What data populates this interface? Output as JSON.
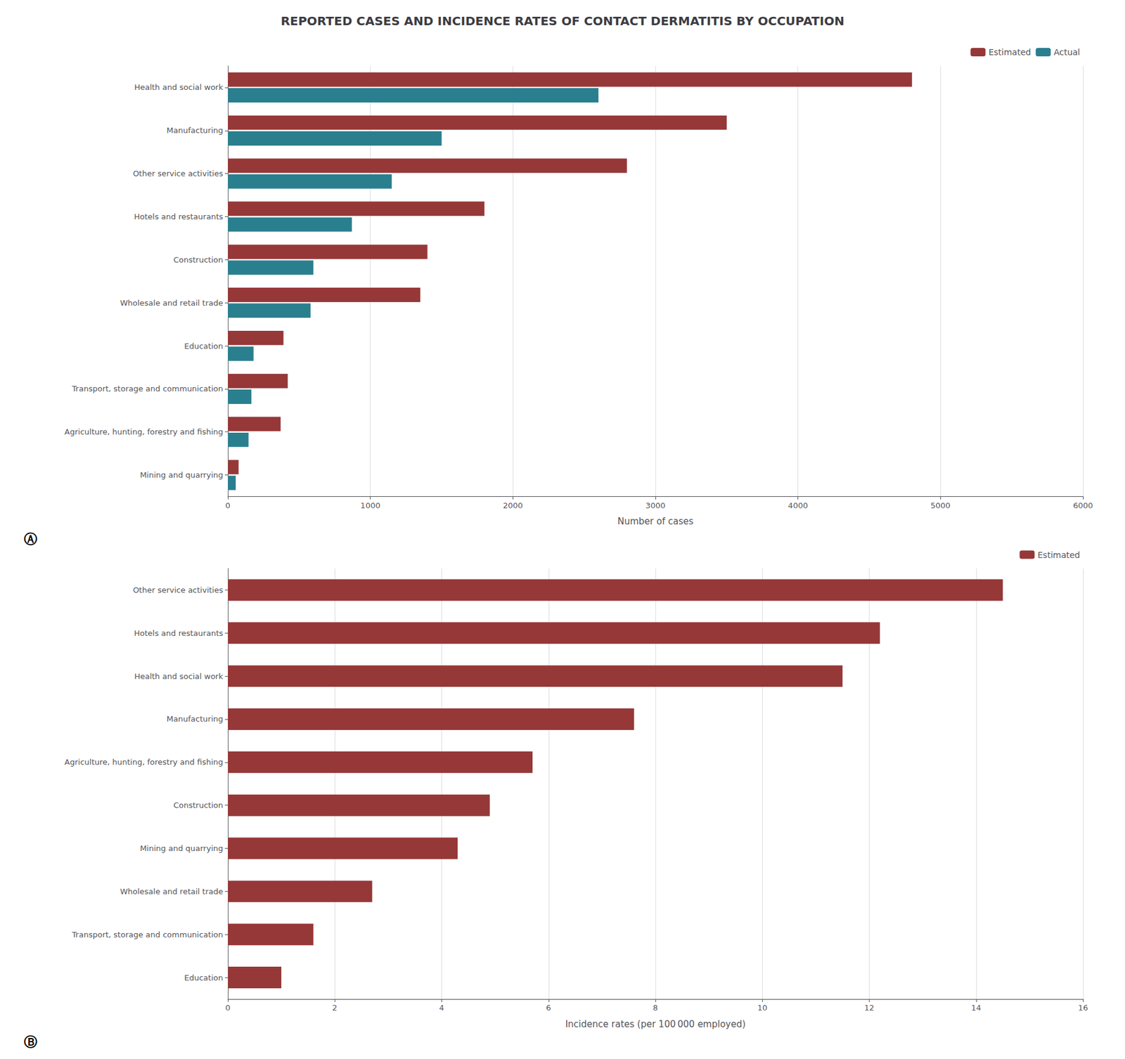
{
  "chart_data": [
    {
      "type": "bar",
      "orientation": "horizontal",
      "title": "REPORTED CASES AND INCIDENCE RATES OF CONTACT DERMATITIS BY OCCUPATION",
      "annotations": [
        "Ⓐ"
      ],
      "categories": [
        "Health and social work",
        "Manufacturing",
        "Other service activities",
        "Hotels and restaurants",
        "Construction",
        "Wholesale and retail trade",
        "Education",
        "Transport, storage and communication",
        "Agriculture, hunting, forestry and fishing",
        "Mining and quarrying"
      ],
      "series": [
        {
          "name": "Estimated",
          "color": "#963838",
          "values": [
            4800,
            3500,
            2800,
            1800,
            1400,
            1350,
            390,
            420,
            370,
            75
          ]
        },
        {
          "name": "Actual",
          "color": "#2A7F8F",
          "values": [
            2600,
            1500,
            1150,
            870,
            600,
            580,
            180,
            165,
            145,
            55
          ]
        }
      ],
      "xlabel": "Number of cases",
      "xlim": [
        0,
        6000
      ],
      "xticks": [
        0,
        1000,
        2000,
        3000,
        4000,
        5000,
        6000
      ],
      "grid": true,
      "legend": "upper right"
    },
    {
      "type": "bar",
      "orientation": "horizontal",
      "annotations": [
        "Ⓑ"
      ],
      "categories": [
        "Other service activities",
        "Hotels and restaurants",
        "Health and social work",
        "Manufacturing",
        "Agriculture, hunting, forestry and fishing",
        "Construction",
        "Mining and quarrying",
        "Wholesale and retail trade",
        "Transport, storage and communication",
        "Education"
      ],
      "series": [
        {
          "name": "Estimated",
          "color": "#963838",
          "values": [
            14.5,
            12.2,
            11.5,
            7.6,
            5.7,
            4.9,
            4.3,
            2.7,
            1.6,
            1.0
          ]
        }
      ],
      "xlabel": "Incidence rates (per 100 000 employed)",
      "xlim": [
        0,
        16
      ],
      "xticks": [
        0,
        2,
        4,
        6,
        8,
        10,
        12,
        14,
        16
      ],
      "grid": true,
      "legend": "upper right"
    }
  ]
}
